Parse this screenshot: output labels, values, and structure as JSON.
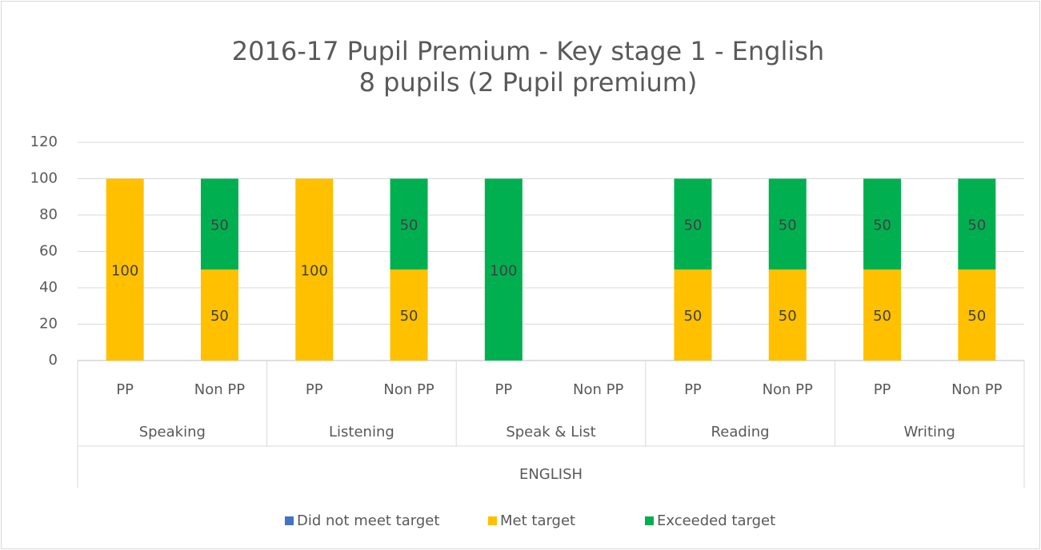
{
  "chart_data": {
    "type": "stacked_bar",
    "title": "2016-17 Pupil Premium - Key stage 1 - English",
    "subtitle": "8 pupils (2 Pupil premium)",
    "categories": [
      "PP",
      "Non PP",
      "PP",
      "Non PP",
      "PP",
      "Non PP",
      "PP",
      "Non PP",
      "PP",
      "Non PP"
    ],
    "groups": [
      "Speaking",
      "Listening",
      "Speak & List",
      "Reading",
      "Writing"
    ],
    "super_group": "ENGLISH",
    "series": [
      {
        "name": "Did not meet target",
        "color": "#4472c4",
        "values": [
          0,
          0,
          0,
          0,
          0,
          0,
          0,
          0,
          0,
          0
        ]
      },
      {
        "name": "Met target",
        "color": "#ffc000",
        "values": [
          100,
          50,
          100,
          50,
          null,
          null,
          50,
          50,
          50,
          50
        ]
      },
      {
        "name": "Exceeded target",
        "color": "#00b050",
        "values": [
          null,
          50,
          null,
          50,
          100,
          null,
          50,
          50,
          50,
          50
        ]
      }
    ],
    "ylim": [
      0,
      120
    ],
    "yticks": [
      0,
      20,
      40,
      60,
      80,
      100,
      120
    ],
    "grid": true,
    "legend": "bottom"
  }
}
